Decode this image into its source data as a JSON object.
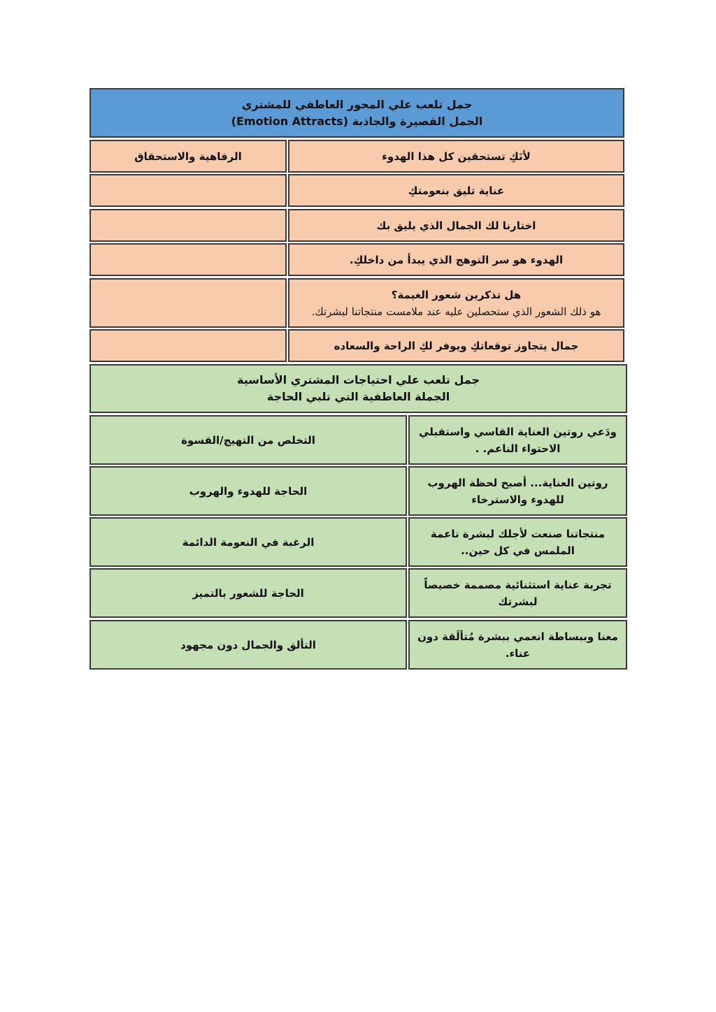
{
  "emotion_table": {
    "header_line1": "جمل تلعب علي المحور العاطفي للمشتري",
    "header_line2": "الجمل القصيرة والجاذبة (Emotion Attracts)",
    "rows": [
      {
        "phrase": "لأنَكِ تستحقين كل هذا الهدوء",
        "category": "الرفاهية والاستحقاق"
      },
      {
        "phrase": "عناية تليق بنعومتكِ",
        "category": ""
      },
      {
        "phrase": "اختارنا لك  الجمال الذي يليق بك",
        "category": ""
      },
      {
        "phrase": "الهدوء هو سر التوهج الذي يبدأ من داخلكِ.",
        "category": ""
      },
      {
        "phrase": "هل تذكرين شعور الغيمة؟",
        "phrase_line2": "هو ذلك الشعور الذي ستحصلين عليه عند ملامست منتجاتنا لبشرتك.",
        "category": ""
      },
      {
        "phrase": "جمال يتجاوز توقعاتكِ ويوفر لكِ الراحة والسعاده",
        "category": ""
      }
    ]
  },
  "needs_table": {
    "header_line1": "جمل تلعب علي احتياجات المشتري الأساسية",
    "header_line2": "الجملة العاطفية التي تلبي الحاجة",
    "rows": [
      {
        "phrase_line1": "ودَعي روتين العناية القاسي واستقبلي",
        "phrase_line2": "الاحتواء الناعم. .",
        "need": "التخلص من التهيج/القسوة"
      },
      {
        "phrase_line1": "روتين العناية... أصبح لحظة الهروب",
        "phrase_line2": "للهدوء والاسترخاء",
        "need": "الحاجة للهدوء والهروب"
      },
      {
        "phrase_line1": "منتجاتنا صنعت لأجلك  لبشرة ناعمة",
        "phrase_line2": "الملمس في كل حين..",
        "need": "الرغبة في النعومة الدائمة"
      },
      {
        "phrase_line1": "تجربة عناية استثنائية مصممة خصيصاً",
        "phrase_line2": "لبشرتك",
        "need": "الحاجة للشعور بالتميز"
      },
      {
        "phrase_line1": "معنا وببساطة انعمي ببشرة مُتألَقة دون",
        "phrase_line2": "عناء.",
        "need": "التألق والجمال دون مجهود"
      }
    ]
  },
  "colors": {
    "header_blue": "#5b9bd5",
    "emotion_pink": "#f8cbad",
    "needs_green": "#c5e0b4"
  }
}
